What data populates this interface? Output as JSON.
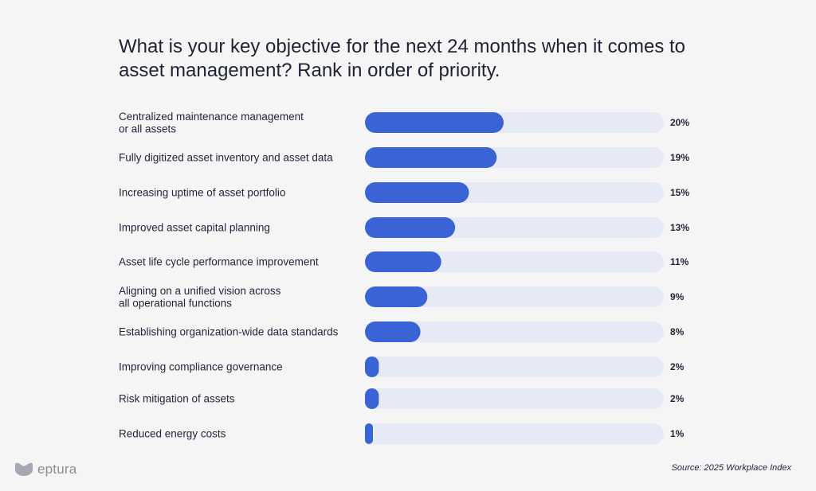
{
  "title": "What is your key objective for the next 24 months when it comes to\nasset management? Rank in order of priority.",
  "chart_data": {
    "type": "bar",
    "orientation": "horizontal",
    "categories": [
      [
        "Centralized maintenance management",
        "or all assets"
      ],
      [
        "Fully digitized asset inventory and asset data"
      ],
      [
        "Increasing uptime of asset portfolio"
      ],
      [
        "Improved asset capital planning"
      ],
      [
        "Asset life cycle performance improvement"
      ],
      [
        "Aligning on a unified vision across",
        "all operational functions"
      ],
      [
        "Establishing organization-wide data standards"
      ],
      [
        "Improving compliance governance"
      ],
      [
        "Risk mitigation of assets"
      ],
      [
        "Reduced energy costs"
      ]
    ],
    "values": [
      20,
      19,
      15,
      13,
      11,
      9,
      8,
      2,
      2,
      1
    ],
    "value_labels": [
      "20%",
      "19%",
      "15%",
      "13%",
      "11%",
      "9%",
      "8%",
      "2%",
      "2%",
      "1%"
    ],
    "unit": "%",
    "bar_color": "#3a64d6",
    "track_color": "#e6eaf7"
  },
  "source": "Source: 2025 Workplace Index",
  "brand": {
    "name": "eptura",
    "logo_icon": "eptura-logo-icon",
    "color": "#8a8e98"
  }
}
